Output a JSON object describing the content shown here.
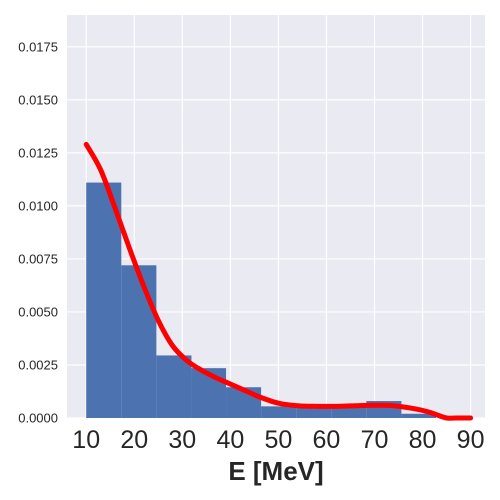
{
  "chart_data": {
    "type": "bar",
    "xlabel": "E [MeV]",
    "ylabel": "",
    "xlim": [
      6,
      93
    ],
    "ylim": [
      0,
      0.019
    ],
    "grid": true,
    "x_ticks": [
      "10",
      "20",
      "30",
      "40",
      "50",
      "60",
      "70",
      "80",
      "90"
    ],
    "y_ticks": [
      "0.0000",
      "0.0025",
      "0.0050",
      "0.0075",
      "0.0100",
      "0.0125",
      "0.0150",
      "0.0175"
    ],
    "bins": [
      {
        "x0": 10.0,
        "x1": 17.3,
        "value": 0.0111
      },
      {
        "x0": 17.3,
        "x1": 24.6,
        "value": 0.0072
      },
      {
        "x0": 24.6,
        "x1": 31.9,
        "value": 0.00295
      },
      {
        "x0": 31.9,
        "x1": 39.1,
        "value": 0.00235
      },
      {
        "x0": 39.1,
        "x1": 46.4,
        "value": 0.00145
      },
      {
        "x0": 46.4,
        "x1": 53.7,
        "value": 0.00055
      },
      {
        "x0": 53.7,
        "x1": 61.0,
        "value": 0.00055
      },
      {
        "x0": 61.0,
        "x1": 68.3,
        "value": 0.00055
      },
      {
        "x0": 68.3,
        "x1": 75.6,
        "value": 0.0008
      },
      {
        "x0": 75.6,
        "x1": 82.8,
        "value": 0.0002
      }
    ],
    "series": [
      {
        "type": "line",
        "x": [
          10,
          13,
          16,
          19,
          22,
          25,
          28,
          31,
          34,
          37,
          40,
          43,
          46,
          50,
          54,
          58,
          62,
          66,
          70,
          74,
          78,
          81,
          83,
          85,
          87,
          90
        ],
        "y": [
          0.0129,
          0.0117,
          0.0099,
          0.008,
          0.0062,
          0.0046,
          0.0034,
          0.0027,
          0.00225,
          0.0019,
          0.0016,
          0.0013,
          0.001,
          0.0007,
          0.00058,
          0.00055,
          0.00055,
          0.00058,
          0.0006,
          0.00058,
          0.00045,
          0.0003,
          0.00015,
          0.0,
          0.0,
          0.0
        ]
      }
    ],
    "colors": {
      "bars": "#4c72b0",
      "line": "#ff0000",
      "plot_background": "#eaeaf2",
      "grid": "#ffffff"
    }
  }
}
